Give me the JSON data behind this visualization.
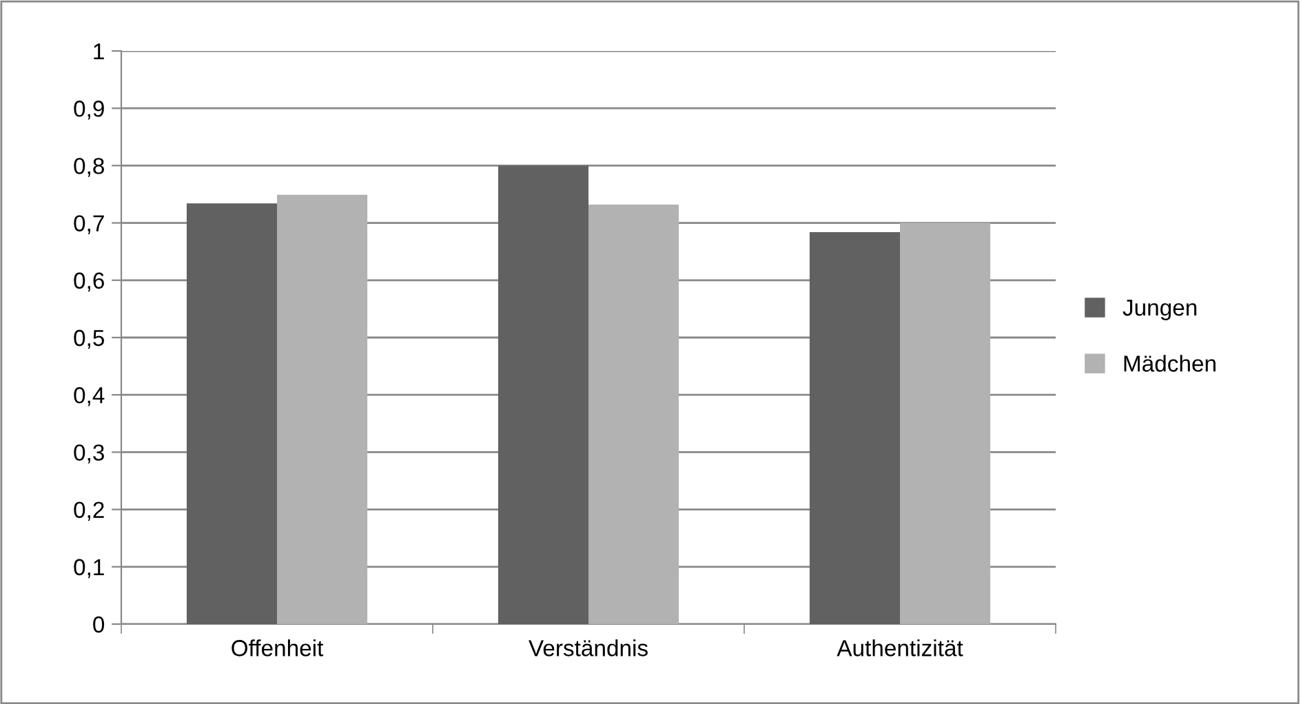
{
  "chart_data": {
    "type": "bar",
    "categories": [
      "Offenheit",
      "Verständnis",
      "Authentizität"
    ],
    "series": [
      {
        "name": "Jungen",
        "color": "#616161",
        "values": [
          0.734,
          0.8,
          0.684
        ]
      },
      {
        "name": "Mädchen",
        "color": "#b2b2b2",
        "values": [
          0.749,
          0.732,
          0.7
        ]
      }
    ],
    "ylim": [
      0,
      1
    ],
    "yticks": [
      {
        "value": 0,
        "label": "0"
      },
      {
        "value": 0.1,
        "label": "0,1"
      },
      {
        "value": 0.2,
        "label": "0,2"
      },
      {
        "value": 0.3,
        "label": "0,3"
      },
      {
        "value": 0.4,
        "label": "0,4"
      },
      {
        "value": 0.5,
        "label": "0,5"
      },
      {
        "value": 0.6,
        "label": "0,6"
      },
      {
        "value": 0.7,
        "label": "0,7"
      },
      {
        "value": 0.8,
        "label": "0,8"
      },
      {
        "value": 0.9,
        "label": "0,9"
      },
      {
        "value": 1,
        "label": "1"
      }
    ],
    "grid": "y",
    "legend": "right"
  }
}
